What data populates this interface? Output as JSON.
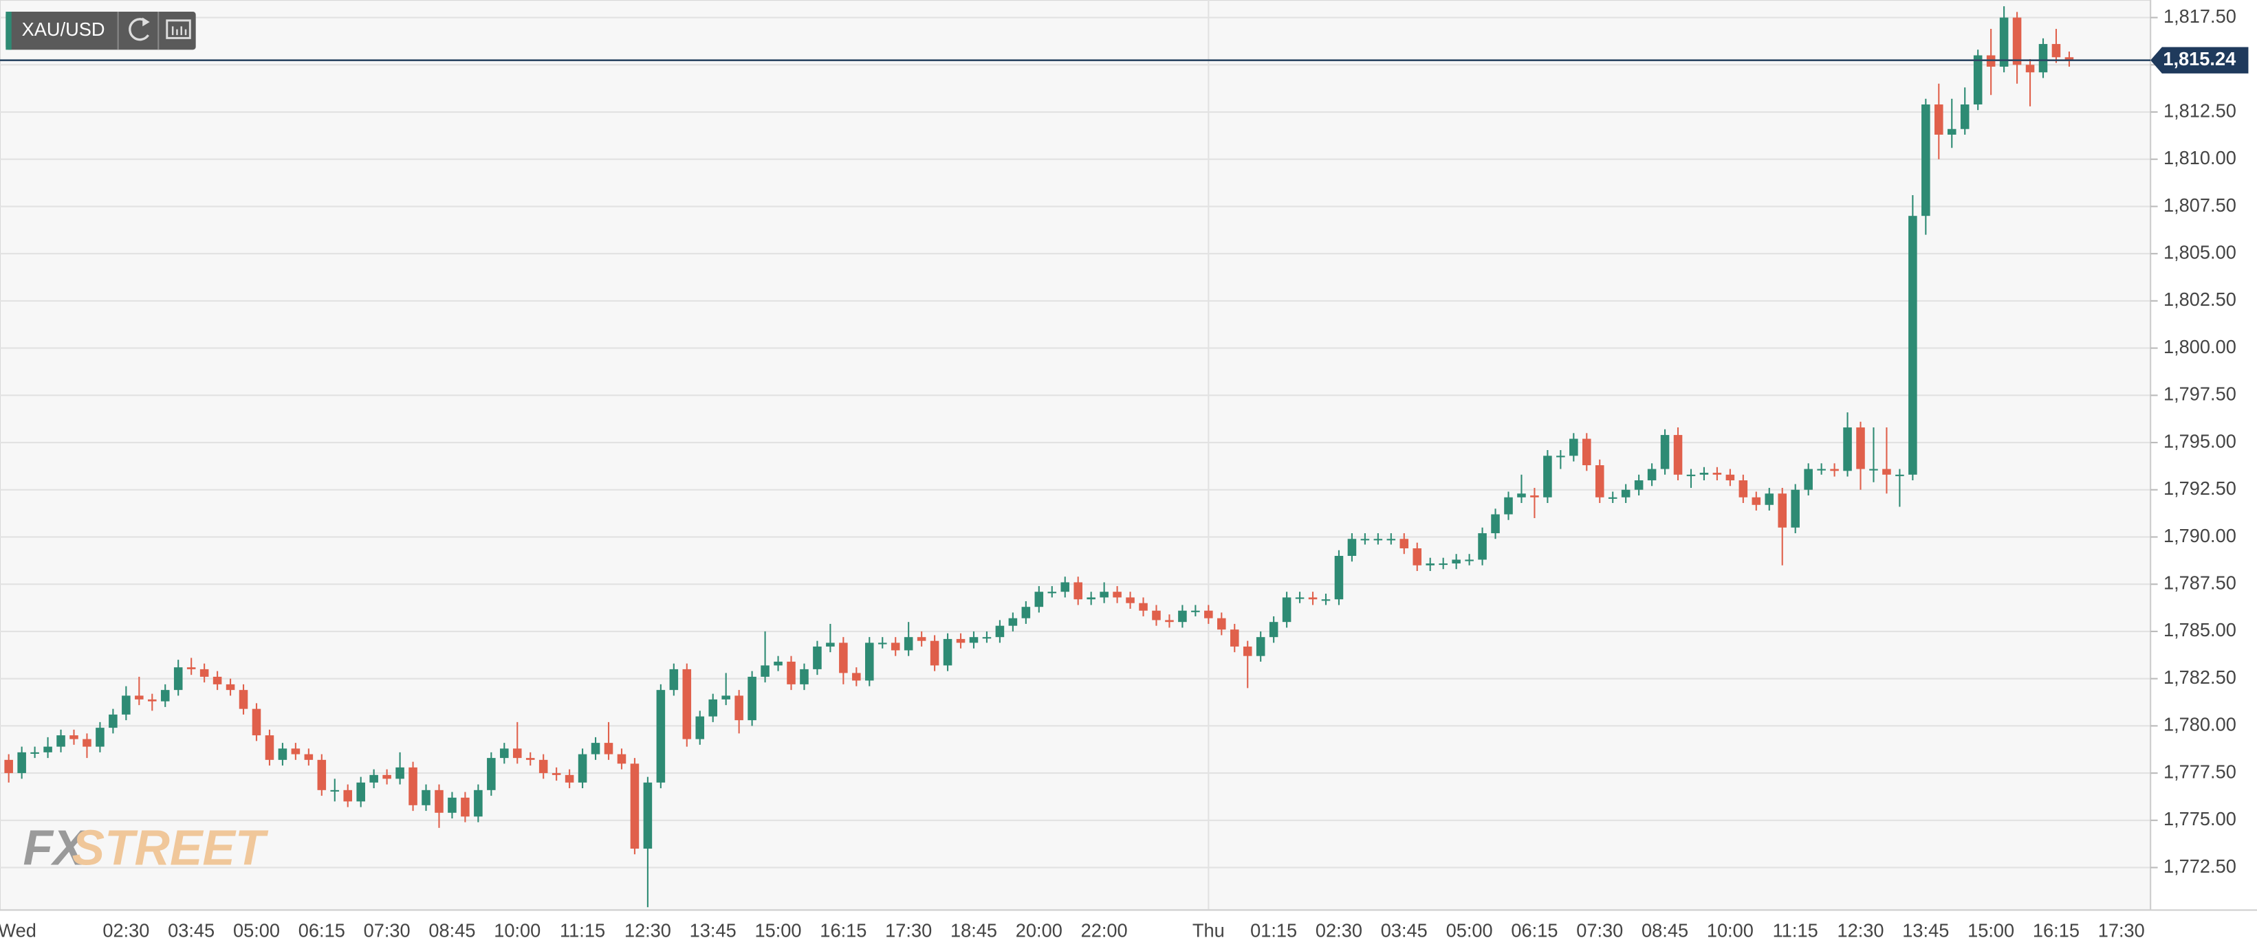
{
  "chart_data": {
    "type": "candlestick",
    "symbol": "XAU/USD",
    "watermark_left": "FX",
    "watermark_right": "STREET",
    "colors": {
      "up": "#2e8b74",
      "down": "#e0604b"
    },
    "grid": true,
    "ylim": [
      1770.25,
      1818.43
    ],
    "yticks": [
      {
        "value": 1772.5,
        "label": "1,772.50"
      },
      {
        "value": 1775,
        "label": "1,775.00"
      },
      {
        "value": 1777.5,
        "label": "1,777.50"
      },
      {
        "value": 1780,
        "label": "1,780.00"
      },
      {
        "value": 1782.5,
        "label": "1,782.50"
      },
      {
        "value": 1785,
        "label": "1,785.00"
      },
      {
        "value": 1787.5,
        "label": "1,787.50"
      },
      {
        "value": 1790,
        "label": "1,790.00"
      },
      {
        "value": 1792.5,
        "label": "1,792.50"
      },
      {
        "value": 1795,
        "label": "1,795.00"
      },
      {
        "value": 1797.5,
        "label": "1,797.50"
      },
      {
        "value": 1800,
        "label": "1,800.00"
      },
      {
        "value": 1802.5,
        "label": "1,802.50"
      },
      {
        "value": 1805,
        "label": "1,805.00"
      },
      {
        "value": 1807.5,
        "label": "1,807.50"
      },
      {
        "value": 1810,
        "label": "1,810.00"
      },
      {
        "value": 1812.5,
        "label": "1,812.50"
      },
      {
        "value": 1815,
        "label": "1,815.00"
      },
      {
        "value": 1817.5,
        "label": "1,817.50"
      }
    ],
    "current_price": {
      "value": 1815.24,
      "label": "1,815.24"
    },
    "categories": [
      "Wed",
      null,
      null,
      null,
      null,
      null,
      null,
      null,
      null,
      null,
      "02:30",
      null,
      null,
      null,
      null,
      "03:45",
      null,
      null,
      null,
      null,
      "05:00",
      null,
      null,
      null,
      null,
      "06:15",
      null,
      null,
      null,
      null,
      "07:30",
      null,
      null,
      null,
      null,
      "08:45",
      null,
      null,
      null,
      null,
      "10:00",
      null,
      null,
      null,
      null,
      "11:15",
      null,
      null,
      null,
      null,
      "12:30",
      null,
      null,
      null,
      null,
      "13:45",
      null,
      null,
      null,
      null,
      "15:00",
      null,
      null,
      null,
      null,
      "16:15",
      null,
      null,
      null,
      null,
      "17:30",
      null,
      null,
      null,
      null,
      "18:45",
      null,
      null,
      null,
      null,
      "20:00",
      null,
      null,
      null,
      null,
      "22:00",
      null,
      null,
      null,
      null,
      null,
      null,
      null,
      "Thu",
      null,
      null,
      null,
      null,
      "01:15",
      null,
      null,
      null,
      null,
      "02:30",
      null,
      null,
      null,
      null,
      "03:45",
      null,
      null,
      null,
      null,
      "05:00",
      null,
      null,
      null,
      null,
      "06:15",
      null,
      null,
      null,
      null,
      "07:30",
      null,
      null,
      null,
      null,
      "08:45",
      null,
      null,
      null,
      null,
      "10:00",
      null,
      null,
      null,
      null,
      "11:15",
      null,
      null,
      null,
      null,
      "12:30",
      null,
      null,
      null,
      null,
      "13:45",
      null,
      null,
      null,
      null,
      "15:00",
      null,
      null,
      null,
      null,
      "16:15",
      null,
      null,
      null,
      null,
      "17:30"
    ],
    "candles": [
      [
        1778.8,
        1779.1,
        1777.9,
        1778.2
      ],
      [
        1778.2,
        1778.5,
        1777.0,
        1777.5
      ],
      [
        1777.5,
        1778.9,
        1777.2,
        1778.6
      ],
      [
        1778.6,
        1778.9,
        1778.3,
        1778.6
      ],
      [
        1778.6,
        1779.4,
        1778.3,
        1778.9
      ],
      [
        1778.9,
        1779.8,
        1778.6,
        1779.5
      ],
      [
        1779.5,
        1779.8,
        1779.0,
        1779.3
      ],
      [
        1779.3,
        1779.6,
        1778.3,
        1778.9
      ],
      [
        1778.9,
        1780.2,
        1778.6,
        1779.9
      ],
      [
        1779.9,
        1780.9,
        1779.6,
        1780.6
      ],
      [
        1780.6,
        1782.1,
        1780.3,
        1781.6
      ],
      [
        1781.6,
        1782.6,
        1781.1,
        1781.4
      ],
      [
        1781.4,
        1781.7,
        1780.8,
        1781.3
      ],
      [
        1781.3,
        1782.2,
        1781.0,
        1781.9
      ],
      [
        1781.9,
        1783.5,
        1781.6,
        1783.1
      ],
      [
        1783.1,
        1783.6,
        1782.7,
        1783.0
      ],
      [
        1783.0,
        1783.3,
        1782.3,
        1782.6
      ],
      [
        1782.6,
        1782.9,
        1781.9,
        1782.2
      ],
      [
        1782.2,
        1782.5,
        1781.6,
        1781.9
      ],
      [
        1781.9,
        1782.2,
        1780.6,
        1780.9
      ],
      [
        1780.9,
        1781.2,
        1779.2,
        1779.5
      ],
      [
        1779.5,
        1779.8,
        1777.9,
        1778.2
      ],
      [
        1778.2,
        1779.1,
        1777.9,
        1778.8
      ],
      [
        1778.8,
        1779.1,
        1778.2,
        1778.5
      ],
      [
        1778.5,
        1778.8,
        1777.9,
        1778.2
      ],
      [
        1778.2,
        1778.5,
        1776.3,
        1776.6
      ],
      [
        1776.6,
        1777.2,
        1776.0,
        1776.6
      ],
      [
        1776.6,
        1776.9,
        1775.7,
        1776.0
      ],
      [
        1776.0,
        1777.3,
        1775.7,
        1777.0
      ],
      [
        1777.0,
        1777.7,
        1776.7,
        1777.4
      ],
      [
        1777.4,
        1777.7,
        1776.9,
        1777.2
      ],
      [
        1777.2,
        1778.6,
        1776.9,
        1777.8
      ],
      [
        1777.8,
        1778.1,
        1775.5,
        1775.8
      ],
      [
        1775.8,
        1776.9,
        1775.5,
        1776.6
      ],
      [
        1776.6,
        1776.9,
        1774.6,
        1775.4
      ],
      [
        1775.4,
        1776.5,
        1775.1,
        1776.2
      ],
      [
        1776.2,
        1776.5,
        1774.9,
        1775.2
      ],
      [
        1775.2,
        1776.9,
        1774.9,
        1776.6
      ],
      [
        1776.6,
        1778.6,
        1776.3,
        1778.3
      ],
      [
        1778.3,
        1779.1,
        1778.0,
        1778.8
      ],
      [
        1778.8,
        1780.2,
        1778.0,
        1778.3
      ],
      [
        1778.3,
        1778.6,
        1777.9,
        1778.2
      ],
      [
        1778.2,
        1778.5,
        1777.2,
        1777.5
      ],
      [
        1777.5,
        1777.8,
        1777.1,
        1777.4
      ],
      [
        1777.4,
        1777.7,
        1776.7,
        1777.0
      ],
      [
        1777.0,
        1778.8,
        1776.7,
        1778.5
      ],
      [
        1778.5,
        1779.4,
        1778.2,
        1779.1
      ],
      [
        1779.1,
        1780.2,
        1778.2,
        1778.5
      ],
      [
        1778.5,
        1778.8,
        1777.7,
        1778.0
      ],
      [
        1778.0,
        1778.3,
        1773.2,
        1773.5
      ],
      [
        1773.5,
        1777.3,
        1770.4,
        1777.0
      ],
      [
        1777.0,
        1782.2,
        1776.7,
        1781.9
      ],
      [
        1781.9,
        1783.3,
        1781.6,
        1783.0
      ],
      [
        1783.0,
        1783.3,
        1778.9,
        1779.3
      ],
      [
        1779.3,
        1780.8,
        1779.0,
        1780.5
      ],
      [
        1780.5,
        1781.7,
        1780.2,
        1781.4
      ],
      [
        1781.4,
        1782.8,
        1781.1,
        1781.6
      ],
      [
        1781.6,
        1781.9,
        1779.6,
        1780.3
      ],
      [
        1780.3,
        1782.9,
        1780.0,
        1782.6
      ],
      [
        1782.6,
        1785.0,
        1782.3,
        1783.2
      ],
      [
        1783.2,
        1783.7,
        1782.9,
        1783.4
      ],
      [
        1783.4,
        1783.7,
        1781.9,
        1782.2
      ],
      [
        1782.2,
        1783.3,
        1781.9,
        1783.0
      ],
      [
        1783.0,
        1784.5,
        1782.7,
        1784.2
      ],
      [
        1784.2,
        1785.4,
        1783.9,
        1784.4
      ],
      [
        1784.4,
        1784.7,
        1782.2,
        1782.8
      ],
      [
        1782.8,
        1783.1,
        1782.1,
        1782.4
      ],
      [
        1782.4,
        1784.7,
        1782.1,
        1784.4
      ],
      [
        1784.4,
        1784.7,
        1784.1,
        1784.4
      ],
      [
        1784.4,
        1784.7,
        1783.7,
        1784.0
      ],
      [
        1784.0,
        1785.5,
        1783.7,
        1784.7
      ],
      [
        1784.7,
        1785.0,
        1784.2,
        1784.5
      ],
      [
        1784.5,
        1784.8,
        1782.9,
        1783.2
      ],
      [
        1783.2,
        1784.9,
        1782.9,
        1784.6
      ],
      [
        1784.6,
        1784.9,
        1784.1,
        1784.4
      ],
      [
        1784.4,
        1785.0,
        1784.1,
        1784.7
      ],
      [
        1784.7,
        1785.0,
        1784.4,
        1784.7
      ],
      [
        1784.7,
        1785.6,
        1784.4,
        1785.3
      ],
      [
        1785.3,
        1786.0,
        1785.0,
        1785.7
      ],
      [
        1785.7,
        1786.6,
        1785.4,
        1786.3
      ],
      [
        1786.3,
        1787.4,
        1786.0,
        1787.1
      ],
      [
        1787.1,
        1787.4,
        1786.8,
        1787.1
      ],
      [
        1787.1,
        1787.9,
        1786.8,
        1787.6
      ],
      [
        1787.6,
        1787.9,
        1786.4,
        1786.7
      ],
      [
        1786.7,
        1787.1,
        1786.4,
        1786.8
      ],
      [
        1786.8,
        1787.6,
        1786.5,
        1787.1
      ],
      [
        1787.1,
        1787.4,
        1786.5,
        1786.8
      ],
      [
        1786.8,
        1787.1,
        1786.2,
        1786.5
      ],
      [
        1786.5,
        1786.8,
        1785.8,
        1786.1
      ],
      [
        1786.1,
        1786.4,
        1785.3,
        1785.6
      ],
      [
        1785.6,
        1785.9,
        1785.2,
        1785.5
      ],
      [
        1785.5,
        1786.4,
        1785.2,
        1786.1
      ],
      [
        1786.1,
        1786.4,
        1785.8,
        1786.1
      ],
      [
        1786.1,
        1786.4,
        1785.4,
        1785.7
      ],
      [
        1785.7,
        1786.0,
        1784.8,
        1785.1
      ],
      [
        1785.1,
        1785.4,
        1783.9,
        1784.2
      ],
      [
        1784.2,
        1784.5,
        1782.0,
        1783.7
      ],
      [
        1783.7,
        1785.0,
        1783.4,
        1784.7
      ],
      [
        1784.7,
        1785.8,
        1784.4,
        1785.5
      ],
      [
        1785.5,
        1787.1,
        1785.2,
        1786.8
      ],
      [
        1786.8,
        1787.1,
        1786.5,
        1786.8
      ],
      [
        1786.8,
        1787.1,
        1786.4,
        1786.7
      ],
      [
        1786.7,
        1787.0,
        1786.4,
        1786.7
      ],
      [
        1786.7,
        1789.3,
        1786.4,
        1789.0
      ],
      [
        1789.0,
        1790.2,
        1788.7,
        1789.9
      ],
      [
        1789.9,
        1790.2,
        1789.6,
        1789.9
      ],
      [
        1789.9,
        1790.2,
        1789.6,
        1789.9
      ],
      [
        1789.9,
        1790.2,
        1789.6,
        1789.9
      ],
      [
        1789.9,
        1790.2,
        1789.1,
        1789.4
      ],
      [
        1789.4,
        1789.7,
        1788.2,
        1788.5
      ],
      [
        1788.5,
        1788.9,
        1788.2,
        1788.6
      ],
      [
        1788.6,
        1788.9,
        1788.3,
        1788.6
      ],
      [
        1788.6,
        1789.1,
        1788.3,
        1788.8
      ],
      [
        1788.8,
        1789.1,
        1788.5,
        1788.8
      ],
      [
        1788.8,
        1790.5,
        1788.5,
        1790.2
      ],
      [
        1790.2,
        1791.5,
        1789.9,
        1791.2
      ],
      [
        1791.2,
        1792.4,
        1790.9,
        1792.1
      ],
      [
        1792.1,
        1793.3,
        1791.8,
        1792.3
      ],
      [
        1792.2,
        1792.6,
        1791.0,
        1792.1
      ],
      [
        1792.1,
        1794.6,
        1791.8,
        1794.3
      ],
      [
        1794.3,
        1794.6,
        1793.6,
        1794.3
      ],
      [
        1794.3,
        1795.5,
        1794.0,
        1795.2
      ],
      [
        1795.2,
        1795.5,
        1793.5,
        1793.8
      ],
      [
        1793.8,
        1794.1,
        1791.8,
        1792.1
      ],
      [
        1792.1,
        1792.4,
        1791.8,
        1792.1
      ],
      [
        1792.1,
        1792.8,
        1791.8,
        1792.5
      ],
      [
        1792.5,
        1793.3,
        1792.2,
        1793.0
      ],
      [
        1793.0,
        1793.9,
        1792.7,
        1793.6
      ],
      [
        1793.6,
        1795.7,
        1793.3,
        1795.4
      ],
      [
        1795.4,
        1795.8,
        1793.0,
        1793.3
      ],
      [
        1793.3,
        1793.6,
        1792.6,
        1793.3
      ],
      [
        1793.3,
        1793.7,
        1793.0,
        1793.4
      ],
      [
        1793.4,
        1793.7,
        1793.0,
        1793.3
      ],
      [
        1793.3,
        1793.6,
        1792.7,
        1793.0
      ],
      [
        1793.0,
        1793.3,
        1791.8,
        1792.1
      ],
      [
        1792.1,
        1792.4,
        1791.4,
        1791.7
      ],
      [
        1791.7,
        1792.6,
        1791.4,
        1792.3
      ],
      [
        1792.3,
        1792.6,
        1788.5,
        1790.5
      ],
      [
        1790.5,
        1792.8,
        1790.2,
        1792.5
      ],
      [
        1792.5,
        1793.9,
        1792.2,
        1793.6
      ],
      [
        1793.6,
        1793.9,
        1793.3,
        1793.6
      ],
      [
        1793.6,
        1793.9,
        1793.2,
        1793.5
      ],
      [
        1793.5,
        1796.6,
        1793.2,
        1795.8
      ],
      [
        1795.8,
        1796.1,
        1792.5,
        1793.6
      ],
      [
        1793.6,
        1795.8,
        1792.9,
        1793.6
      ],
      [
        1793.6,
        1795.8,
        1792.3,
        1793.3
      ],
      [
        1793.3,
        1793.6,
        1791.6,
        1793.3
      ],
      [
        1793.3,
        1808.1,
        1793.0,
        1807.0
      ],
      [
        1807.0,
        1813.2,
        1806.0,
        1812.9
      ],
      [
        1812.9,
        1814.0,
        1810.0,
        1811.3
      ],
      [
        1811.3,
        1813.2,
        1810.6,
        1811.6
      ],
      [
        1811.6,
        1813.8,
        1811.3,
        1812.9
      ],
      [
        1812.9,
        1815.8,
        1812.6,
        1815.5
      ],
      [
        1815.5,
        1816.9,
        1813.4,
        1814.9
      ],
      [
        1814.9,
        1818.1,
        1814.6,
        1817.5
      ],
      [
        1817.5,
        1817.8,
        1814.0,
        1815.0
      ],
      [
        1815.0,
        1815.3,
        1812.8,
        1814.6
      ],
      [
        1814.6,
        1816.4,
        1814.3,
        1816.1
      ],
      [
        1816.1,
        1816.9,
        1815.1,
        1815.4
      ],
      [
        1815.4,
        1815.7,
        1814.9,
        1815.24
      ],
      null,
      null,
      null,
      null
    ]
  }
}
